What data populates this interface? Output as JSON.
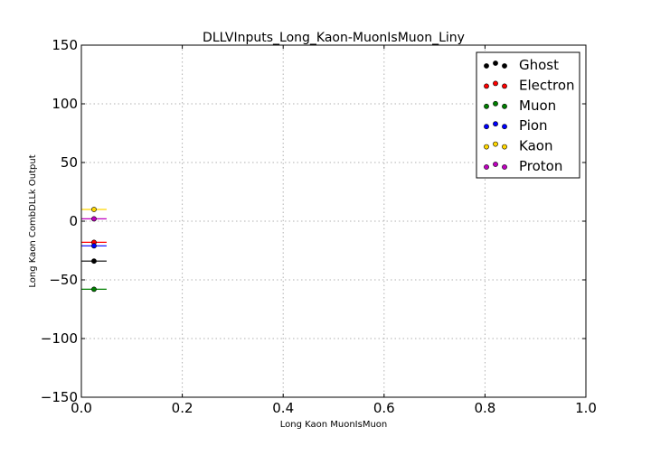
{
  "chart_data": {
    "type": "scatter",
    "title": "DLLVInputs_Long_Kaon-MuonIsMuon_Liny",
    "xlabel": "Long Kaon MuonIsMuon",
    "ylabel": "Long Kaon CombDLLk Output",
    "xlim": [
      0.0,
      1.0
    ],
    "ylim": [
      -150,
      150
    ],
    "xticks": [
      0.0,
      0.2,
      0.4,
      0.6,
      0.8,
      1.0
    ],
    "xtick_labels": [
      "0.0",
      "0.2",
      "0.4",
      "0.6",
      "0.8",
      "1.0"
    ],
    "yticks": [
      150,
      100,
      50,
      0,
      -50,
      -100,
      -150
    ],
    "ytick_labels": [
      "150",
      "100",
      "50",
      "0",
      "−50",
      "−100",
      "−150"
    ],
    "grid": true,
    "legend_position": "top-right",
    "series": [
      {
        "name": "Ghost",
        "color": "#000000",
        "x": 0.025,
        "y": -34,
        "xerr": 0.025
      },
      {
        "name": "Electron",
        "color": "#ff0000",
        "x": 0.025,
        "y": -18,
        "xerr": 0.025
      },
      {
        "name": "Muon",
        "color": "#008000",
        "x": 0.025,
        "y": -58,
        "xerr": 0.025
      },
      {
        "name": "Pion",
        "color": "#0000ff",
        "x": 0.025,
        "y": -21,
        "xerr": 0.025
      },
      {
        "name": "Kaon",
        "color": "#ffd700",
        "x": 0.025,
        "y": 10,
        "xerr": 0.025
      },
      {
        "name": "Proton",
        "color": "#bf00bf",
        "x": 0.025,
        "y": 2,
        "xerr": 0.025
      }
    ]
  }
}
